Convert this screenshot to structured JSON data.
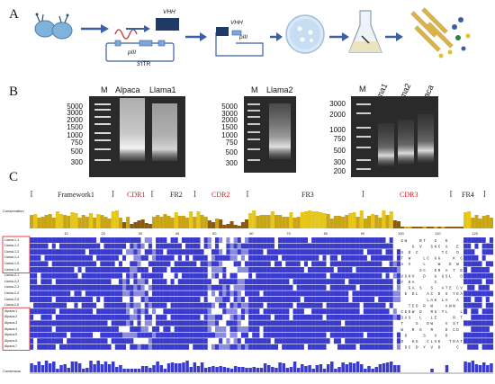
{
  "panels": {
    "a": "A",
    "b": "B",
    "c": "C"
  },
  "panel_a": {
    "vhh_label": "VHH",
    "vhh_label2": "VHH",
    "piii_label": "pIII",
    "piii_label2": "pIII",
    "itr_label": "3'ITR"
  },
  "gel1": {
    "lanes": [
      "M",
      "Alpaca",
      "Llama1"
    ],
    "ladder": [
      "5000",
      "3000",
      "2000",
      "1500",
      "1000",
      "750",
      "500",
      "300"
    ]
  },
  "gel2": {
    "lanes": [
      "M",
      "Llama2"
    ],
    "ladder": [
      "5000",
      "3000",
      "2000",
      "1500",
      "1000",
      "750",
      "500",
      "300"
    ]
  },
  "gel3": {
    "lanes": [
      "M",
      "Llama1",
      "Llama2",
      "Alpaca"
    ],
    "ladder": [
      "3000",
      "2000",
      "1000",
      "750",
      "500",
      "300",
      "200"
    ]
  },
  "alignment": {
    "regions": [
      {
        "name": "Framework1",
        "color": "#222222"
      },
      {
        "name": "CDR1",
        "color": "#d0202a"
      },
      {
        "name": "FR2",
        "color": "#222222"
      },
      {
        "name": "CDR2",
        "color": "#d0202a"
      },
      {
        "name": "FR3",
        "color": "#222222"
      },
      {
        "name": "CDR3",
        "color": "#d0202a"
      },
      {
        "name": "FR4",
        "color": "#222222"
      }
    ],
    "conservation_label": "Conservation",
    "consensus_label": "Consensus",
    "ruler": [
      "10",
      "20",
      "30",
      "40",
      "50",
      "60",
      "70",
      "80",
      "90",
      "100",
      "110",
      "120"
    ],
    "sequence_names": [
      "Llama-1-1",
      "Llama-1-2",
      "Llama-1-3",
      "Llama-1-4",
      "Llama-1-5",
      "Llama-1-6",
      "Llama-2-1",
      "Llama-2-2",
      "Llama-2-3",
      "Llama-2-4",
      "Llama-2-5",
      "Llama-2-6",
      "Alpaca-1",
      "Alpaca-2",
      "Alpaca-3",
      "Alpaca-4",
      "Alpaca-5",
      "Alpaca-6",
      "Alpaca-7"
    ],
    "colors": {
      "identity": "#3a3acc",
      "conservation_bar": "#e6c619",
      "conservation_dark": "#8a5a10",
      "cdr_text": "#d0202a",
      "highlight_box": "#e03030"
    }
  }
}
